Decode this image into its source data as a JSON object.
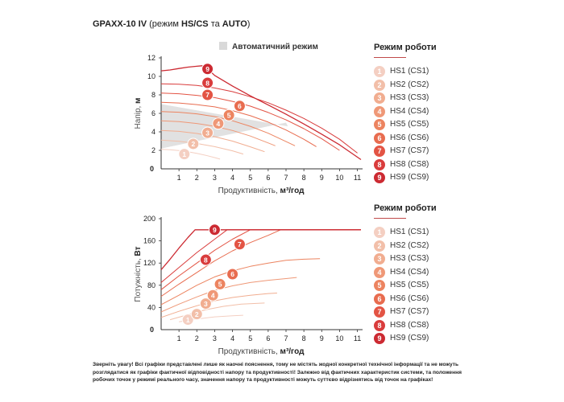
{
  "title": {
    "model": "GPAXX-10 IV",
    "mode_prefix": "(режим ",
    "mode_hs": "HS/CS",
    "mode_and": " та ",
    "mode_auto": "AUTO",
    "mode_suffix": ")"
  },
  "auto_legend_label": "Автоматичний режим",
  "legend_title": "Режим роботи",
  "modes": [
    {
      "badge": "1",
      "label": "HS1 (CS1)",
      "color": "#f4cfc2"
    },
    {
      "badge": "2",
      "label": "HS2 (CS2)",
      "color": "#f2bfa9"
    },
    {
      "badge": "3",
      "label": "HS3 (CS3)",
      "color": "#f1ad90"
    },
    {
      "badge": "4",
      "label": "HS4 (CS4)",
      "color": "#ef9877"
    },
    {
      "badge": "5",
      "label": "HS5 (CS5)",
      "color": "#ec8460"
    },
    {
      "badge": "6",
      "label": "HS6 (CS6)",
      "color": "#e86c4f"
    },
    {
      "badge": "7",
      "label": "HS7 (CS7)",
      "color": "#e35444"
    },
    {
      "badge": "8",
      "label": "HS8 (CS8)",
      "color": "#d93c3c"
    },
    {
      "badge": "9",
      "label": "HS9 (CS9)",
      "color": "#cc2a32"
    }
  ],
  "disclaimer": "Зверніть увагу! Всі графіки представлені лише як наочні пояснення, тому не містять жодної конкретної технічної інформації та не можуть розглядатися як графіки фактичної відповідності напору та продуктивності! Залежно від фактичних характеристик системи, та положення робочих точок у режимі реального часу, значення напору та продуктивності можуть суттєво відрізнятись від точок на графіках!",
  "chart_data": [
    {
      "type": "line",
      "xlabel_prefix": "Продуктивність, ",
      "xlabel_unit": "м³/год",
      "ylabel_prefix": "Напір, ",
      "ylabel_unit": "м",
      "xlim": [
        0,
        11.2
      ],
      "ylim": [
        0,
        12
      ],
      "x_ticks": [
        "1",
        "2",
        "3",
        "4",
        "5",
        "6",
        "7",
        "8",
        "9",
        "10",
        "11"
      ],
      "y_ticks": [
        "2",
        "4",
        "6",
        "8",
        "10",
        "12"
      ],
      "zero_label": "0",
      "auto_area": [
        [
          0,
          2.2
        ],
        [
          7,
          5.0
        ],
        [
          7.1,
          4.6
        ],
        [
          0,
          7.0
        ]
      ],
      "series": [
        {
          "name": "HS1 (CS1)",
          "points": [
            [
              0,
              2.1
            ],
            [
              0.5,
              2.07
            ],
            [
              1,
              1.98
            ],
            [
              1.5,
              1.85
            ],
            [
              2,
              1.68
            ],
            [
              2.5,
              1.46
            ],
            [
              3,
              1.22
            ],
            [
              3.3,
              1.05
            ]
          ],
          "marker": [
            1.3,
            1.6
          ]
        },
        {
          "name": "HS2 (CS2)",
          "points": [
            [
              0,
              3.1
            ],
            [
              1,
              2.98
            ],
            [
              2,
              2.75
            ],
            [
              3,
              2.4
            ],
            [
              4,
              1.95
            ],
            [
              4.6,
              1.6
            ]
          ],
          "marker": [
            1.8,
            2.7
          ]
        },
        {
          "name": "HS3 (CS3)",
          "points": [
            [
              0,
              4.15
            ],
            [
              1,
              4.05
            ],
            [
              2,
              3.83
            ],
            [
              3,
              3.48
            ],
            [
              4,
              3.0
            ],
            [
              5,
              2.38
            ],
            [
              5.8,
              1.85
            ]
          ],
          "marker": [
            2.6,
            3.9
          ]
        },
        {
          "name": "HS4 (CS4)",
          "points": [
            [
              0,
              5.2
            ],
            [
              1,
              5.1
            ],
            [
              2,
              4.9
            ],
            [
              3,
              4.6
            ],
            [
              4,
              4.15
            ],
            [
              5,
              3.55
            ],
            [
              6,
              2.8
            ],
            [
              6.4,
              2.5
            ]
          ],
          "marker": [
            3.2,
            4.9
          ]
        },
        {
          "name": "HS5 (CS5)",
          "points": [
            [
              0,
              6.2
            ],
            [
              1,
              6.12
            ],
            [
              2,
              5.95
            ],
            [
              3,
              5.65
            ],
            [
              4,
              5.2
            ],
            [
              5,
              4.6
            ],
            [
              6,
              3.85
            ],
            [
              7,
              2.95
            ],
            [
              7.5,
              2.5
            ]
          ],
          "marker": [
            3.8,
            5.8
          ]
        },
        {
          "name": "HS6 (CS6)",
          "points": [
            [
              0,
              7.2
            ],
            [
              1,
              7.12
            ],
            [
              2,
              6.95
            ],
            [
              3,
              6.7
            ],
            [
              4,
              6.3
            ],
            [
              5,
              5.75
            ],
            [
              6,
              5.05
            ],
            [
              7,
              4.2
            ],
            [
              8,
              3.2
            ],
            [
              8.7,
              2.4
            ]
          ],
          "marker": [
            4.4,
            6.8
          ]
        },
        {
          "name": "HS7 (CS7)",
          "points": [
            [
              0,
              8.2
            ],
            [
              1,
              8.12
            ],
            [
              2,
              7.95
            ],
            [
              3,
              7.7
            ],
            [
              4,
              7.3
            ],
            [
              5,
              6.78
            ],
            [
              6,
              6.1
            ],
            [
              7,
              5.3
            ],
            [
              8,
              4.35
            ],
            [
              9,
              3.25
            ],
            [
              10,
              2.0
            ]
          ],
          "marker": [
            2.6,
            8.0
          ]
        },
        {
          "name": "HS8 (CS8)",
          "points": [
            [
              0,
              9.2
            ],
            [
              1,
              9.15
            ],
            [
              2,
              9.02
            ],
            [
              3,
              8.75
            ],
            [
              4,
              8.35
            ],
            [
              5,
              7.8
            ],
            [
              6,
              7.15
            ],
            [
              7,
              6.35
            ],
            [
              8,
              5.45
            ],
            [
              9,
              4.4
            ],
            [
              10,
              3.2
            ],
            [
              11,
              1.7
            ]
          ],
          "marker": [
            2.6,
            9.3
          ]
        },
        {
          "name": "HS9 (CS9)",
          "points": [
            [
              0,
              10.6
            ],
            [
              0.5,
              10.7
            ],
            [
              1,
              10.85
            ],
            [
              1.5,
              11.0
            ],
            [
              2,
              11.1
            ],
            [
              2.3,
              11.15
            ],
            [
              2.5,
              11.0
            ],
            [
              3,
              10.1
            ],
            [
              4,
              8.95
            ],
            [
              5,
              7.9
            ],
            [
              6,
              6.9
            ],
            [
              7,
              5.9
            ],
            [
              8,
              4.85
            ],
            [
              9,
              3.75
            ],
            [
              10,
              2.6
            ],
            [
              11.2,
              1.0
            ]
          ],
          "marker": [
            2.6,
            10.8
          ]
        }
      ]
    },
    {
      "type": "line",
      "xlabel_prefix": "Продуктивність, ",
      "xlabel_unit": "м³/год",
      "ylabel_prefix": "Потужність, ",
      "ylabel_unit": "Вт",
      "xlim": [
        0,
        11.2
      ],
      "ylim": [
        0,
        200
      ],
      "x_ticks": [
        "1",
        "2",
        "3",
        "4",
        "5",
        "6",
        "7",
        "8",
        "9",
        "10",
        "11"
      ],
      "y_ticks": [
        "40",
        "80",
        "120",
        "160",
        "200"
      ],
      "zero_label": "0",
      "series": [
        {
          "name": "HS1 (CS1)",
          "points": [
            [
              1,
              14
            ],
            [
              2,
              19
            ],
            [
              3,
              23
            ],
            [
              4,
              25
            ],
            [
              4.6,
              26
            ]
          ],
          "marker": [
            1.5,
            18
          ]
        },
        {
          "name": "HS2 (CS2)",
          "points": [
            [
              0.5,
              18
            ],
            [
              1.5,
              27
            ],
            [
              2.5,
              36
            ],
            [
              3.5,
              42
            ],
            [
              4.5,
              46
            ],
            [
              5.8,
              48
            ]
          ],
          "marker": [
            2.0,
            28
          ]
        },
        {
          "name": "HS3 (CS3)",
          "points": [
            [
              0,
              22
            ],
            [
              1,
              33
            ],
            [
              2,
              43
            ],
            [
              3,
              52
            ],
            [
              4,
              58
            ],
            [
              5,
              62
            ],
            [
              6,
              65
            ],
            [
              6.5,
              66
            ]
          ],
          "marker": [
            2.5,
            47
          ]
        },
        {
          "name": "HS4 (CS4)",
          "points": [
            [
              0,
              32
            ],
            [
              1,
              46
            ],
            [
              2,
              59
            ],
            [
              3,
              71
            ],
            [
              4,
              79
            ],
            [
              5,
              85
            ],
            [
              6,
              89
            ],
            [
              7,
              92
            ],
            [
              7.6,
              94
            ]
          ],
          "marker": [
            2.9,
            62
          ]
        },
        {
          "name": "HS5 (CS5)",
          "points": [
            [
              0,
              45
            ],
            [
              1,
              62
            ],
            [
              2,
              80
            ],
            [
              3,
              95
            ],
            [
              4,
              106
            ],
            [
              5,
              114
            ],
            [
              6,
              120
            ],
            [
              7,
              125
            ],
            [
              8,
              127
            ],
            [
              8.9,
              128
            ]
          ],
          "marker": [
            3.3,
            82
          ]
        },
        {
          "name": "HS6 (CS6)",
          "points": [
            [
              0,
              60
            ],
            [
              1,
              82
            ],
            [
              2,
              103
            ],
            [
              3,
              124
            ],
            [
              4,
              142
            ],
            [
              5,
              157
            ],
            [
              6,
              170
            ],
            [
              6.7,
              180
            ],
            [
              11.2,
              180
            ]
          ],
          "marker": [
            4.0,
            100
          ]
        },
        {
          "name": "HS7 (CS7)",
          "points": [
            [
              0,
              72
            ],
            [
              1,
              97
            ],
            [
              2,
              120
            ],
            [
              3,
              143
            ],
            [
              4,
              163
            ],
            [
              5,
              180
            ],
            [
              11.2,
              180
            ]
          ],
          "marker": [
            4.4,
            154
          ]
        },
        {
          "name": "HS8 (CS8)",
          "points": [
            [
              0,
              85
            ],
            [
              1,
              112
            ],
            [
              2,
              139
            ],
            [
              3,
              163
            ],
            [
              3.7,
              180
            ],
            [
              11.2,
              180
            ]
          ],
          "marker": [
            2.5,
            126
          ]
        },
        {
          "name": "HS9 (CS9)",
          "points": [
            [
              0,
              108
            ],
            [
              0.5,
              127
            ],
            [
              1,
              147
            ],
            [
              1.5,
              166
            ],
            [
              1.9,
              180
            ],
            [
              11.2,
              180
            ]
          ],
          "marker": [
            3.0,
            180
          ]
        }
      ]
    }
  ]
}
